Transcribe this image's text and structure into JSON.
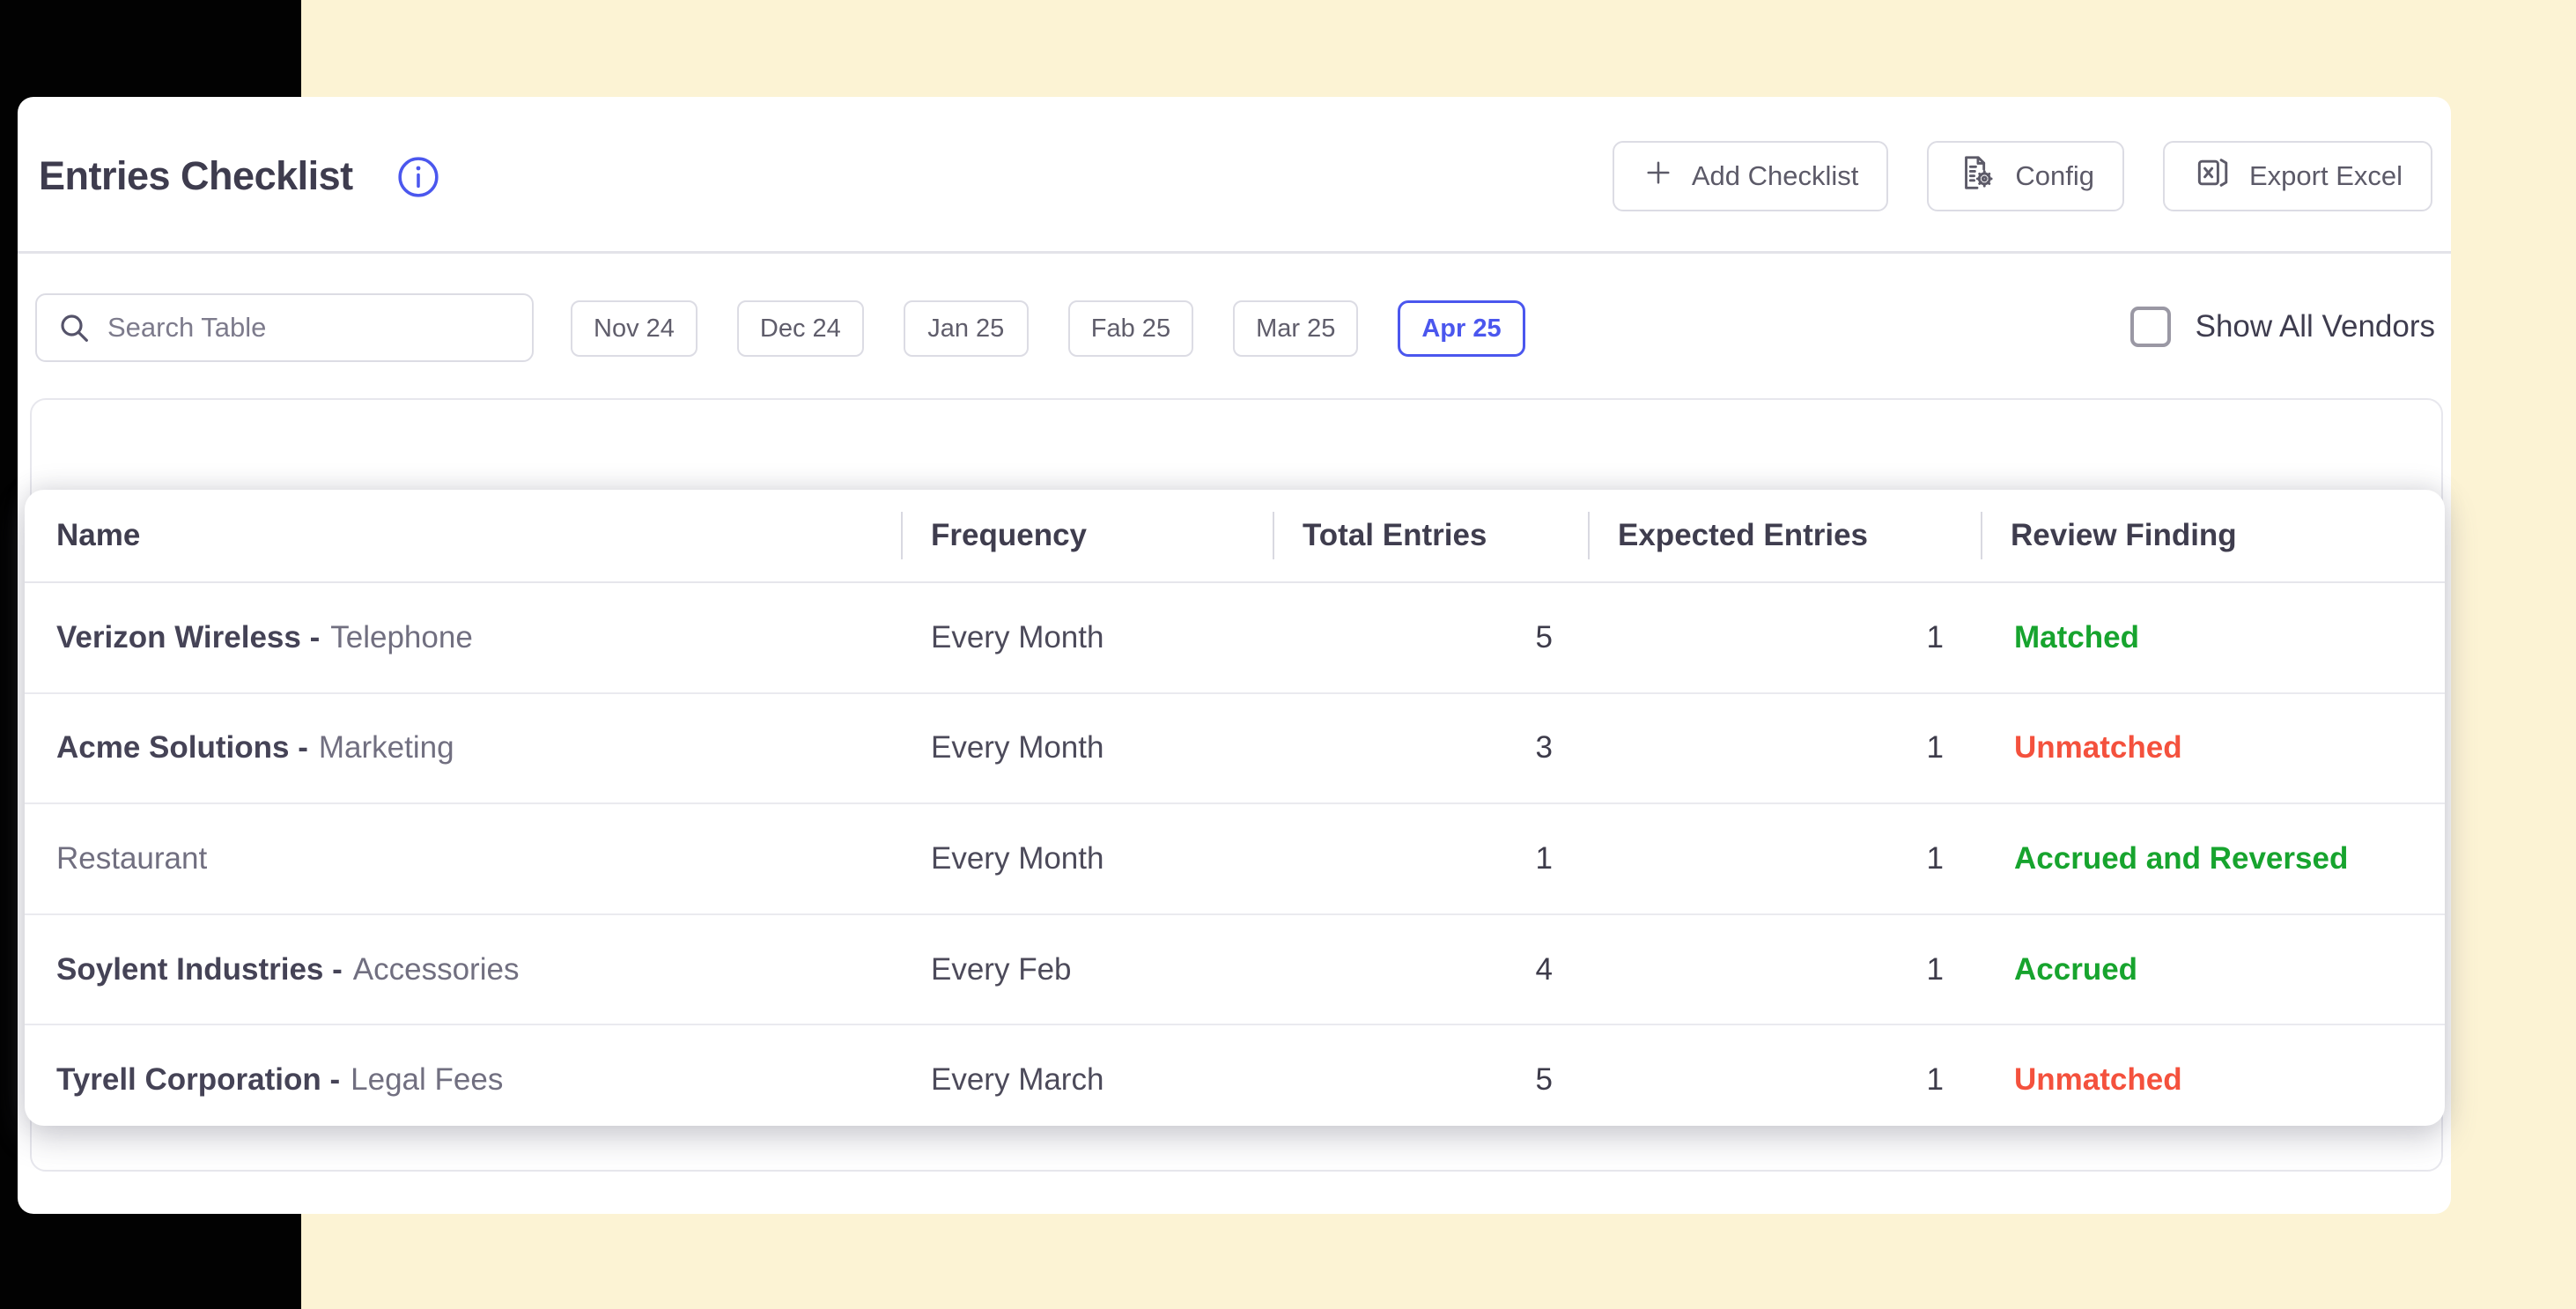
{
  "colors": {
    "background": "#fcf3d4",
    "accent": "#4b57ee",
    "green": "#17a42e",
    "red": "#f4513d",
    "text_dark": "#3e3c4e",
    "text_muted": "#716f80",
    "border": "#dcdce4"
  },
  "header": {
    "title": "Entries Checklist",
    "info_icon": "info-circle-icon",
    "buttons": [
      {
        "label": "Add Checklist",
        "icon": "plus-icon"
      },
      {
        "label": "Config",
        "icon": "document-gear-icon"
      },
      {
        "label": "Export Excel",
        "icon": "excel-file-icon"
      }
    ]
  },
  "filters": {
    "search_placeholder": "Search Table",
    "months": [
      {
        "label": "Nov 24",
        "selected": false
      },
      {
        "label": "Dec 24",
        "selected": false
      },
      {
        "label": "Jan 25",
        "selected": false
      },
      {
        "label": "Fab 25",
        "selected": false
      },
      {
        "label": "Mar 25",
        "selected": false
      },
      {
        "label": "Apr 25",
        "selected": true
      }
    ],
    "show_all_vendors": {
      "label": "Show All Vendors",
      "checked": false
    }
  },
  "table": {
    "columns": [
      "Name",
      "Frequency",
      "Total Entries",
      "Expected Entries",
      "Review Finding"
    ],
    "rows": [
      {
        "name_primary": "Verizon Wireless -",
        "name_secondary": "Telephone",
        "frequency": "Every Month",
        "total_entries": "5",
        "expected_entries": "1",
        "review_finding": "Matched",
        "finding_color": "green"
      },
      {
        "name_primary": "Acme Solutions -",
        "name_secondary": "Marketing",
        "frequency": "Every Month",
        "total_entries": "3",
        "expected_entries": "1",
        "review_finding": "Unmatched",
        "finding_color": "red"
      },
      {
        "name_primary": "",
        "name_secondary": "Restaurant",
        "frequency": "Every Month",
        "total_entries": "1",
        "expected_entries": "1",
        "review_finding": "Accrued and Reversed",
        "finding_color": "green"
      },
      {
        "name_primary": "Soylent Industries -",
        "name_secondary": "Accessories",
        "frequency": "Every Feb",
        "total_entries": "4",
        "expected_entries": "1",
        "review_finding": "Accrued",
        "finding_color": "green"
      },
      {
        "name_primary": "Tyrell Corporation -",
        "name_secondary": "Legal Fees",
        "frequency": "Every March",
        "total_entries": "5",
        "expected_entries": "1",
        "review_finding": "Unmatched",
        "finding_color": "red"
      }
    ]
  }
}
